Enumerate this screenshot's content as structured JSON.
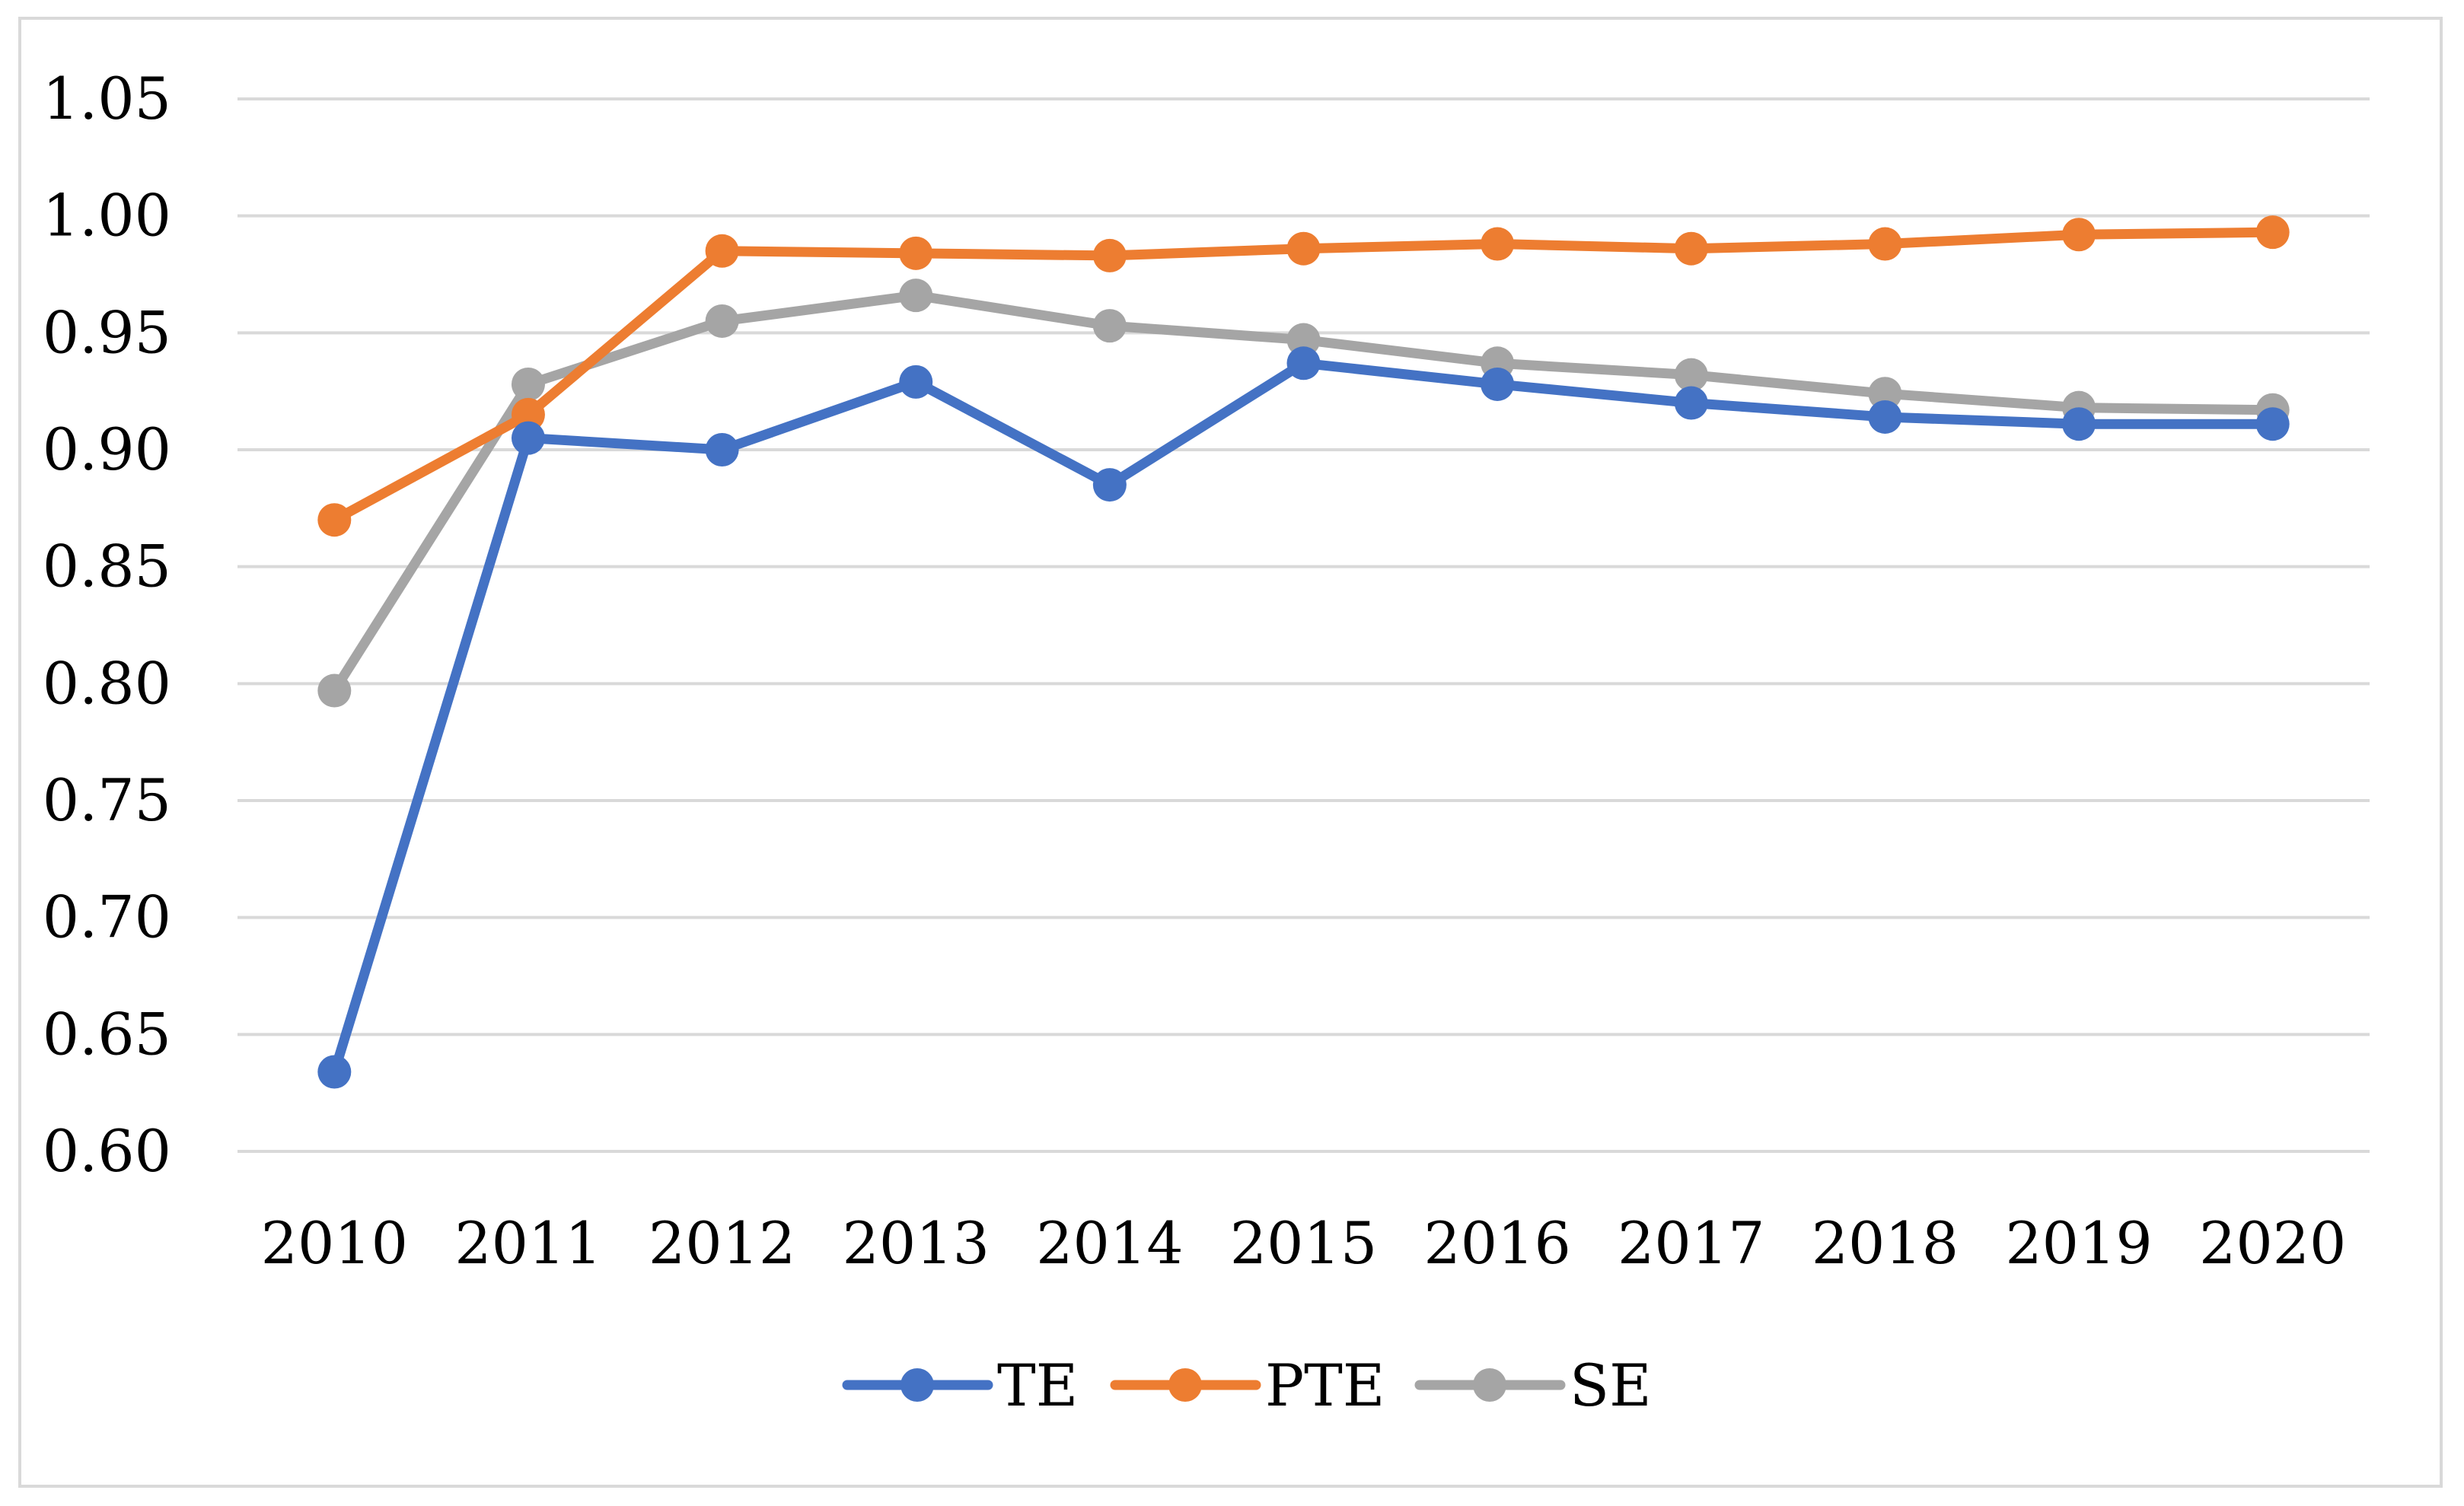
{
  "chart_data": {
    "type": "line",
    "title": "",
    "xlabel": "",
    "ylabel": "",
    "x": [
      "2010",
      "2011",
      "2012",
      "2013",
      "2014",
      "2015",
      "2016",
      "2017",
      "2018",
      "2019",
      "2020"
    ],
    "ylim": [
      0.6,
      1.05
    ],
    "yticks": [
      "0.60",
      "0.65",
      "0.70",
      "0.75",
      "0.80",
      "0.85",
      "0.90",
      "0.95",
      "1.00",
      "1.05"
    ],
    "grid": "horizontal",
    "legend_position": "bottom",
    "series": [
      {
        "name": "TE",
        "color": "#4472c4",
        "values": [
          0.634,
          0.905,
          0.9,
          0.929,
          0.885,
          0.937,
          0.928,
          0.92,
          0.914,
          0.911,
          0.911
        ]
      },
      {
        "name": "PTE",
        "color": "#ed7d31",
        "values": [
          0.87,
          0.915,
          0.985,
          0.984,
          0.983,
          0.986,
          0.988,
          0.986,
          0.988,
          0.992,
          0.993
        ]
      },
      {
        "name": "SE",
        "color": "#a5a5a5",
        "values": [
          0.797,
          0.928,
          0.955,
          0.966,
          0.953,
          0.947,
          0.937,
          0.932,
          0.924,
          0.918,
          0.917
        ]
      }
    ]
  }
}
